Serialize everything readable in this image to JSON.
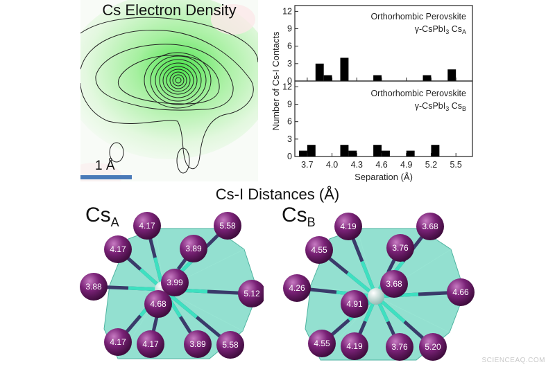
{
  "density_map": {
    "title": "Cs Electron Density",
    "scale_bar_label": "1 Å",
    "scale_bar_color": "#4a7ab8"
  },
  "chart_data": [
    {
      "type": "bar",
      "title": "",
      "annotation_line1": "Orthorhombic Perovskite",
      "annotation_line2": "γ-CsPbI",
      "annotation_sub3": "3",
      "annotation_cs": " Cs",
      "annotation_subsite": "A",
      "x": [
        3.85,
        3.95,
        4.15,
        4.55,
        5.15,
        5.45
      ],
      "values": [
        3,
        1,
        4,
        1,
        1,
        2
      ],
      "ylim": [
        0,
        13
      ],
      "yticks": [
        "0",
        "3",
        "6",
        "9",
        "12"
      ],
      "xlim": [
        3.55,
        5.7
      ]
    },
    {
      "type": "bar",
      "title": "",
      "annotation_line1": "Orthorhombic Perovskite",
      "annotation_line2": "γ-CsPbI",
      "annotation_sub3": "3",
      "annotation_cs": " Cs",
      "annotation_subsite": "B",
      "x": [
        3.65,
        3.75,
        4.15,
        4.25,
        4.55,
        4.65,
        4.95,
        5.25
      ],
      "values": [
        1,
        2,
        2,
        1,
        2,
        1,
        1,
        2
      ],
      "ylim": [
        0,
        13
      ],
      "yticks": [
        "0",
        "3",
        "6",
        "9",
        "12"
      ],
      "xlim": [
        3.55,
        5.7
      ],
      "xticks": [
        "3.7",
        "4.0",
        "4.3",
        "4.6",
        "4.9",
        "5.2",
        "5.5"
      ],
      "xtick_values": [
        3.7,
        4.0,
        4.3,
        4.6,
        4.9,
        5.2,
        5.5
      ],
      "xlabel": "Separation (Å)",
      "ylabel": "Number of Cs-I Contacts"
    }
  ],
  "structures": {
    "title": "Cs-I Distances (Å)",
    "cs_a": {
      "label": "Cs",
      "sub": "A",
      "atoms": [
        "4.17",
        "5.58",
        "4.17",
        "3.89",
        "3.88",
        "3.99",
        "5.12",
        "4.68",
        "4.17",
        "4.17",
        "3.89",
        "5.58"
      ]
    },
    "cs_b": {
      "label": "Cs",
      "sub": "B",
      "atoms": [
        "4.19",
        "3.68",
        "4.55",
        "3.76",
        "4.26",
        "3.68",
        "4.66",
        "4.91",
        "4.55",
        "4.19",
        "3.76",
        "5.20"
      ]
    },
    "iodine_color": "#7a2277",
    "polyhedron_color": "#6fd6c0"
  },
  "watermark": "SCIENCEAQ.COM"
}
